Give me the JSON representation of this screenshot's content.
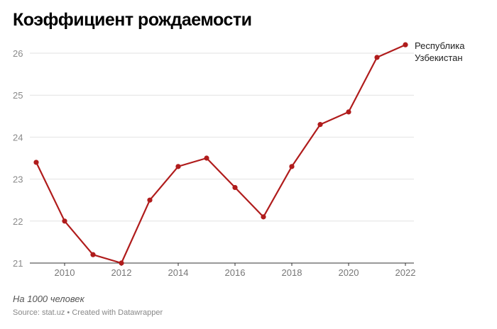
{
  "chart_data": {
    "type": "line",
    "title": "Коэффициент рождаемости",
    "x": [
      2009,
      2010,
      2011,
      2012,
      2013,
      2014,
      2015,
      2016,
      2017,
      2018,
      2019,
      2020,
      2021,
      2022
    ],
    "x_ticks": [
      2010,
      2012,
      2014,
      2016,
      2018,
      2020,
      2022
    ],
    "y_ticks": [
      21,
      22,
      23,
      24,
      25,
      26
    ],
    "ylim": [
      21,
      26.2
    ],
    "grid": "horizontal",
    "series": [
      {
        "name_lines": [
          "Республика",
          "Узбекистан"
        ],
        "color": "#b01c1c",
        "values": [
          23.4,
          22.0,
          21.2,
          21.0,
          22.5,
          23.3,
          23.5,
          22.8,
          22.1,
          23.3,
          24.3,
          24.6,
          25.9,
          26.2
        ]
      }
    ]
  },
  "footer": {
    "note": "На 1000 человек",
    "source": "Source: stat.uz • Created with Datawrapper"
  }
}
